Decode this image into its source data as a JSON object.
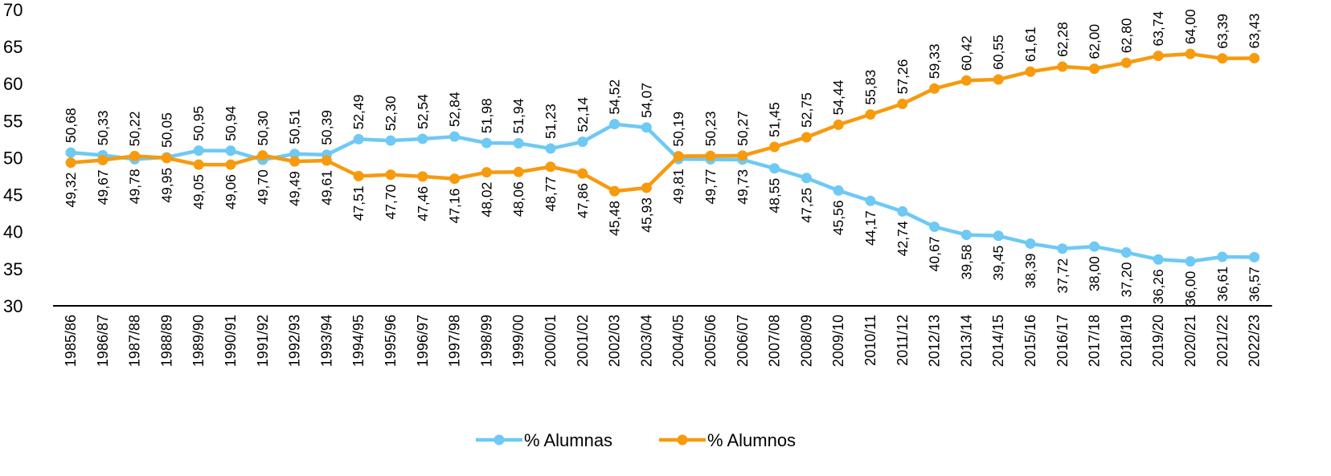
{
  "chart_data": {
    "type": "line",
    "title": "",
    "xlabel": "",
    "ylabel": "",
    "ylim": [
      30,
      70
    ],
    "yticks": [
      "30",
      "35",
      "40",
      "45",
      "50",
      "55",
      "60",
      "65",
      "70"
    ],
    "grid": false,
    "legend_position": "bottom",
    "categories": [
      "1985/86",
      "1986/87",
      "1987/88",
      "1988/89",
      "1989/90",
      "1990/91",
      "1991/92",
      "1992/93",
      "1993/94",
      "1994/95",
      "1995/96",
      "1996/97",
      "1997/98",
      "1998/99",
      "1999/00",
      "2000/01",
      "2001/02",
      "2002/03",
      "2003/04",
      "2004/05",
      "2005/06",
      "2006/07",
      "2007/08",
      "2008/09",
      "2009/10",
      "2010/11",
      "2011/12",
      "2012/13",
      "2013/14",
      "2014/15",
      "2015/16",
      "2016/17",
      "2017/18",
      "2018/19",
      "2019/20",
      "2020/21",
      "2021/22",
      "2022/23"
    ],
    "series": [
      {
        "name": "% Alumnas",
        "color": "#6ec9f4",
        "values": [
          50.68,
          50.33,
          49.78,
          50.05,
          50.95,
          50.94,
          49.7,
          50.51,
          50.39,
          52.49,
          52.3,
          52.54,
          52.84,
          51.98,
          51.94,
          51.23,
          52.14,
          54.52,
          54.07,
          49.81,
          49.77,
          49.73,
          48.55,
          47.25,
          45.56,
          44.17,
          42.74,
          40.67,
          39.58,
          39.45,
          38.39,
          37.72,
          38.0,
          37.2,
          36.26,
          36.0,
          36.61,
          36.57
        ],
        "labels": [
          "50,68",
          "50,33",
          "49,78",
          "50,05",
          "50,95",
          "50,94",
          "49,70",
          "50,51",
          "50,39",
          "52,49",
          "52,30",
          "52,54",
          "52,84",
          "51,98",
          "51,94",
          "51,23",
          "52,14",
          "54,52",
          "54,07",
          "49,81",
          "49,77",
          "49,73",
          "48,55",
          "47,25",
          "45,56",
          "44,17",
          "42,74",
          "40,67",
          "39,58",
          "39,45",
          "38,39",
          "37,72",
          "38,00",
          "37,20",
          "36,26",
          "36,00",
          "36,61",
          "36,57"
        ]
      },
      {
        "name": "% Alumnos",
        "color": "#f79a0e",
        "values": [
          49.32,
          49.67,
          50.22,
          49.95,
          49.05,
          49.06,
          50.3,
          49.49,
          49.61,
          47.51,
          47.7,
          47.46,
          47.16,
          48.02,
          48.06,
          48.77,
          47.86,
          45.48,
          45.93,
          50.19,
          50.23,
          50.27,
          51.45,
          52.75,
          54.44,
          55.83,
          57.26,
          59.33,
          60.42,
          60.55,
          61.61,
          62.28,
          62.0,
          62.8,
          63.74,
          64.0,
          63.39,
          63.43
        ],
        "labels": [
          "49,32",
          "49,67",
          "50,22",
          "49,95",
          "49,05",
          "49,06",
          "50,30",
          "49,49",
          "49,61",
          "47,51",
          "47,70",
          "47,46",
          "47,16",
          "48,02",
          "48,06",
          "48,77",
          "47,86",
          "45,48",
          "45,93",
          "50,19",
          "50,23",
          "50,27",
          "51,45",
          "52,75",
          "54,44",
          "55,83",
          "57,26",
          "59,33",
          "60,42",
          "60,55",
          "61,61",
          "62,28",
          "62,00",
          "62,80",
          "63,74",
          "64,00",
          "63,39",
          "63,43"
        ]
      }
    ]
  }
}
